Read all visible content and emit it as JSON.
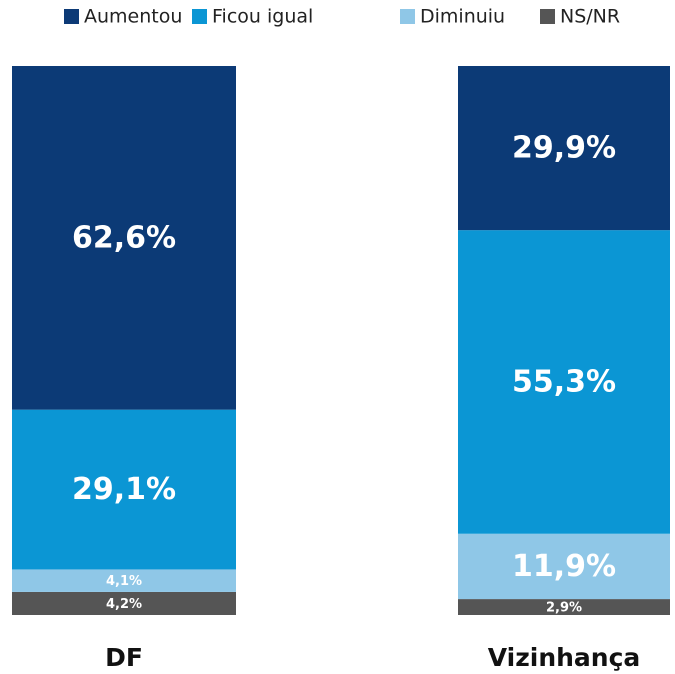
{
  "chart_data": {
    "type": "bar",
    "stacked": true,
    "categories": [
      "DF",
      "Vizinhança"
    ],
    "ylim": [
      0,
      100
    ],
    "series": [
      {
        "name": "Aumentou",
        "color": "#0c3a76",
        "values": [
          62.6,
          29.9
        ],
        "value_labels": [
          "62,6%",
          "29,9%"
        ]
      },
      {
        "name": "Ficou igual",
        "color": "#0b96d4",
        "values": [
          29.1,
          55.3
        ],
        "value_labels": [
          "29,1%",
          "55,3%"
        ]
      },
      {
        "name": "Diminuiu",
        "color": "#8fc7e7",
        "values": [
          4.1,
          11.9
        ],
        "value_labels": [
          "4,1%",
          "11,9%"
        ]
      },
      {
        "name": "NS/NR",
        "color": "#555555",
        "values": [
          4.2,
          2.9
        ],
        "value_labels": [
          "4,2%",
          "2,9%"
        ]
      }
    ]
  }
}
